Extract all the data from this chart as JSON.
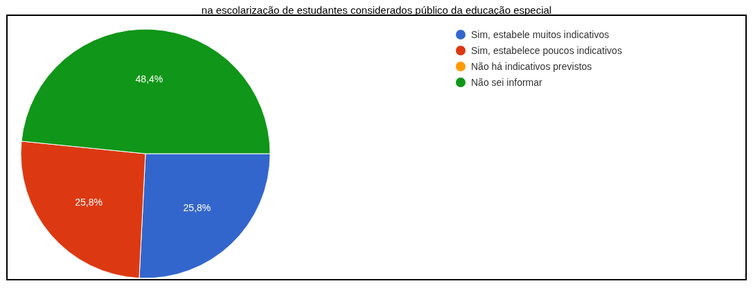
{
  "chart_data": {
    "type": "pie",
    "title": "na escolarização de estudantes considerados público da educação especial",
    "categories": [
      "Sim, estabele muitos indicativos",
      "Sim, estabelece poucos indicativos",
      "Não há indicativos previstos",
      "Não sei informar"
    ],
    "values": [
      25.8,
      25.8,
      0,
      48.4
    ],
    "colors": [
      "#3366cc",
      "#dc3912",
      "#ff9900",
      "#109618"
    ],
    "value_labels": [
      "25,8%",
      "25,8%",
      null,
      "48,4%"
    ],
    "legend": "top right"
  }
}
